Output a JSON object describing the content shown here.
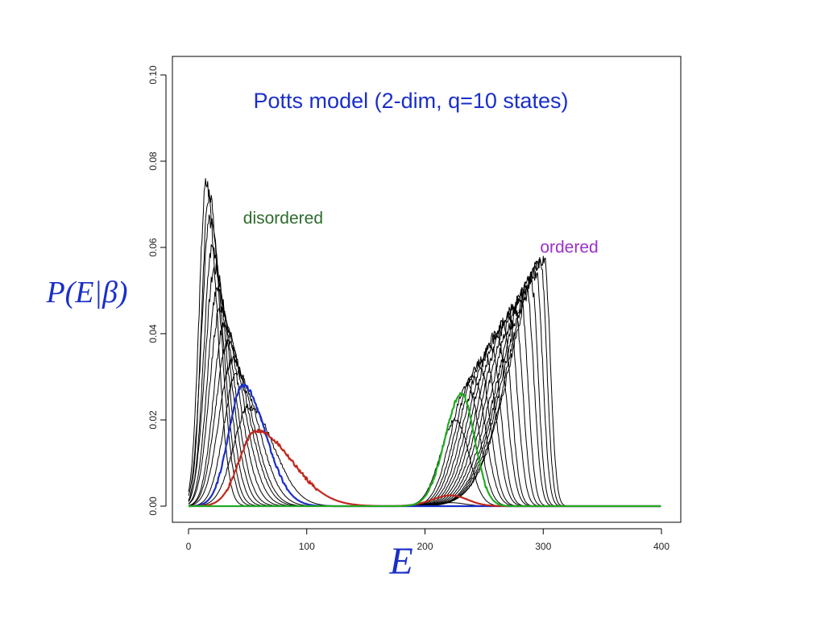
{
  "chart_data": {
    "type": "line",
    "title": "Potts model (2-dim, q=10 states)",
    "xlabel": "E",
    "ylabel": "P(E|β)",
    "xlim": [
      0,
      400
    ],
    "ylim": [
      0,
      0.1
    ],
    "x_ticks": [
      "0",
      "100",
      "200",
      "300",
      "400"
    ],
    "y_ticks": [
      "0.00",
      "0.02",
      "0.04",
      "0.06",
      "0.08",
      "0.10"
    ],
    "grid": false,
    "legend": "none",
    "annotations": [
      {
        "text": "disordered",
        "x": 80,
        "y": 0.0655,
        "color": "#2e6b2e"
      },
      {
        "text": "ordered",
        "x": 322,
        "y": 0.0588,
        "color": "#9b30c8"
      }
    ],
    "colors": {
      "background_curves": "#000000",
      "title": "#1a2fc8",
      "axis_labels": "#1a2fc8",
      "highlight_blue": "#1a2fc8",
      "highlight_red": "#c0281e",
      "highlight_green": "#22aa22"
    },
    "series": [
      {
        "peaks": [
          {
            "x": 15,
            "h": 0.075,
            "sl": 6,
            "sr": 9
          }
        ],
        "color": "#000000",
        "width": 1
      },
      {
        "peaks": [
          {
            "x": 17,
            "h": 0.072,
            "sl": 6,
            "sr": 10
          }
        ],
        "color": "#000000",
        "width": 1
      },
      {
        "peaks": [
          {
            "x": 18,
            "h": 0.066,
            "sl": 7,
            "sr": 11
          }
        ],
        "color": "#000000",
        "width": 1
      },
      {
        "peaks": [
          {
            "x": 20,
            "h": 0.06,
            "sl": 7,
            "sr": 12
          }
        ],
        "color": "#000000",
        "width": 1
      },
      {
        "peaks": [
          {
            "x": 22,
            "h": 0.055,
            "sl": 8,
            "sr": 13
          }
        ],
        "color": "#000000",
        "width": 1
      },
      {
        "peaks": [
          {
            "x": 24,
            "h": 0.05,
            "sl": 8,
            "sr": 14
          }
        ],
        "color": "#000000",
        "width": 1
      },
      {
        "peaks": [
          {
            "x": 27,
            "h": 0.046,
            "sl": 9,
            "sr": 15
          }
        ],
        "color": "#000000",
        "width": 1
      },
      {
        "peaks": [
          {
            "x": 30,
            "h": 0.042,
            "sl": 9,
            "sr": 16
          }
        ],
        "color": "#000000",
        "width": 1
      },
      {
        "peaks": [
          {
            "x": 33,
            "h": 0.038,
            "sl": 10,
            "sr": 17
          }
        ],
        "color": "#000000",
        "width": 1
      },
      {
        "peaks": [
          {
            "x": 37,
            "h": 0.034,
            "sl": 11,
            "sr": 17
          }
        ],
        "color": "#000000",
        "width": 1
      },
      {
        "peaks": [
          {
            "x": 41,
            "h": 0.031,
            "sl": 11,
            "sr": 18
          }
        ],
        "color": "#000000",
        "width": 1
      },
      {
        "peaks": [
          {
            "x": 46,
            "h": 0.028,
            "sl": 12,
            "sr": 19
          }
        ],
        "color": "#1a2fc8",
        "width": 2.2
      },
      {
        "peaks": [
          {
            "x": 51,
            "h": 0.023,
            "sl": 13,
            "sr": 21
          },
          {
            "x": 222,
            "h": 0.0008,
            "sl": 14,
            "sr": 12
          }
        ],
        "color": "#000000",
        "width": 1
      },
      {
        "peaks": [
          {
            "x": 57,
            "h": 0.0175,
            "sl": 14,
            "sr": 30
          },
          {
            "x": 222,
            "h": 0.0025,
            "sl": 16,
            "sr": 14
          }
        ],
        "color": "#c0281e",
        "width": 2.2
      },
      {
        "peaks": [
          {
            "x": 226,
            "h": 0.02,
            "sl": 13,
            "sr": 11
          }
        ],
        "color": "#000000",
        "width": 1
      },
      {
        "peaks": [
          {
            "x": 231,
            "h": 0.026,
            "sl": 14,
            "sr": 11
          }
        ],
        "color": "#22aa22",
        "width": 2.2
      },
      {
        "peaks": [
          {
            "x": 236,
            "h": 0.028,
            "sl": 14,
            "sr": 10
          }
        ],
        "color": "#000000",
        "width": 1
      },
      {
        "peaks": [
          {
            "x": 241,
            "h": 0.03,
            "sl": 15,
            "sr": 10
          }
        ],
        "color": "#000000",
        "width": 1
      },
      {
        "peaks": [
          {
            "x": 246,
            "h": 0.033,
            "sl": 16,
            "sr": 9
          }
        ],
        "color": "#000000",
        "width": 1
      },
      {
        "peaks": [
          {
            "x": 251,
            "h": 0.035,
            "sl": 17,
            "sr": 9
          }
        ],
        "color": "#000000",
        "width": 1
      },
      {
        "peaks": [
          {
            "x": 256,
            "h": 0.037,
            "sl": 18,
            "sr": 8
          }
        ],
        "color": "#000000",
        "width": 1
      },
      {
        "peaks": [
          {
            "x": 261,
            "h": 0.04,
            "sl": 19,
            "sr": 8
          }
        ],
        "color": "#000000",
        "width": 1
      },
      {
        "peaks": [
          {
            "x": 266,
            "h": 0.042,
            "sl": 20,
            "sr": 7
          }
        ],
        "color": "#000000",
        "width": 1
      },
      {
        "peaks": [
          {
            "x": 271,
            "h": 0.044,
            "sl": 21,
            "sr": 7
          }
        ],
        "color": "#000000",
        "width": 1
      },
      {
        "peaks": [
          {
            "x": 276,
            "h": 0.046,
            "sl": 22,
            "sr": 6.5
          }
        ],
        "color": "#000000",
        "width": 1
      },
      {
        "peaks": [
          {
            "x": 281,
            "h": 0.048,
            "sl": 23,
            "sr": 6
          }
        ],
        "color": "#000000",
        "width": 1
      },
      {
        "peaks": [
          {
            "x": 286,
            "h": 0.05,
            "sl": 24,
            "sr": 6
          }
        ],
        "color": "#000000",
        "width": 1
      },
      {
        "peaks": [
          {
            "x": 290,
            "h": 0.052,
            "sl": 25,
            "sr": 5.5
          }
        ],
        "color": "#000000",
        "width": 1
      },
      {
        "peaks": [
          {
            "x": 294,
            "h": 0.054,
            "sl": 26,
            "sr": 5.5
          }
        ],
        "color": "#000000",
        "width": 1
      },
      {
        "peaks": [
          {
            "x": 298,
            "h": 0.056,
            "sl": 27,
            "sr": 5
          }
        ],
        "color": "#000000",
        "width": 1
      },
      {
        "peaks": [
          {
            "x": 301,
            "h": 0.057,
            "sl": 28,
            "sr": 5
          }
        ],
        "color": "#000000",
        "width": 1
      }
    ]
  }
}
